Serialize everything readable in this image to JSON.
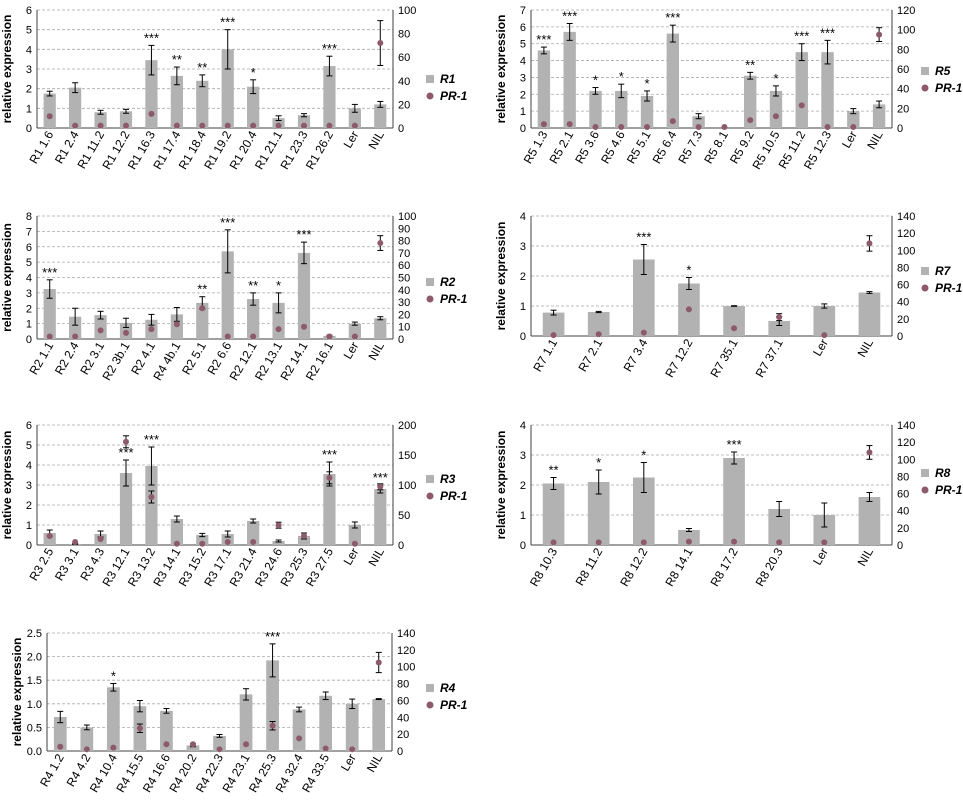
{
  "figure": {
    "colors": {
      "bar": "#b2b2b2",
      "point": "#8c5a6a",
      "grid": "#a9a9a9",
      "axis": "#404040",
      "error": "#000000"
    },
    "y_left_label": "relative expression",
    "legend_bar_symbol": "square",
    "legend_point_symbol": "circle"
  },
  "chart_data": [
    {
      "panel": "R1",
      "type": "bar",
      "categories": [
        "R1 1.6",
        "R1 2.4",
        "R1 11.2",
        "R1 12.2",
        "R1 16.3",
        "R1 17.4",
        "R1 18.4",
        "R1 19.2",
        "R1 20.4",
        "R1 21.1",
        "R1 23.3",
        "R1 26.2",
        "Ler",
        "NIL"
      ],
      "series": [
        {
          "name": "R1",
          "kind": "bar",
          "axis": "left",
          "values": [
            1.75,
            2.05,
            0.8,
            0.85,
            3.45,
            2.65,
            2.4,
            4.0,
            2.1,
            0.5,
            0.65,
            3.15,
            1.0,
            1.2
          ],
          "error": [
            0.12,
            0.25,
            0.1,
            0.1,
            0.75,
            0.45,
            0.3,
            1.0,
            0.35,
            0.12,
            0.08,
            0.5,
            0.2,
            0.15
          ]
        },
        {
          "name": "PR-1",
          "kind": "point",
          "axis": "right",
          "values": [
            10,
            2,
            2,
            2,
            12,
            2,
            2,
            2,
            2,
            2,
            2,
            2,
            2,
            72
          ],
          "error": [
            0,
            0,
            0,
            0,
            0,
            0,
            0,
            0,
            0,
            0,
            0,
            0,
            0,
            19
          ]
        }
      ],
      "significance": [
        "",
        "",
        "",
        "",
        "***",
        "**",
        "**",
        "***",
        "*",
        "",
        "",
        "***",
        "",
        ""
      ],
      "ylabel": "relative expression",
      "ylim": [
        0,
        6
      ],
      "yticks": [
        0,
        1,
        2,
        3,
        4,
        5,
        6
      ],
      "y2lim": [
        0,
        100
      ],
      "y2ticks": [
        0,
        20,
        40,
        60,
        80,
        100
      ],
      "legend": [
        "R1",
        "PR-1"
      ],
      "legend_position": "right",
      "grid": true
    },
    {
      "panel": "R5",
      "type": "bar",
      "categories": [
        "R5 1.3",
        "R5 2.1",
        "R5 3.6",
        "R5 4.6",
        "R5 5.1",
        "R5 6.4",
        "R5 7.3",
        "R5 8.1",
        "R5 9.2",
        "R5 10.5",
        "R5 11.2",
        "R5 12.3",
        "Ler",
        "NIL"
      ],
      "series": [
        {
          "name": "R5",
          "kind": "bar",
          "axis": "left",
          "values": [
            4.6,
            5.7,
            2.2,
            2.2,
            1.9,
            5.6,
            0.7,
            0,
            3.1,
            2.2,
            4.5,
            4.5,
            1.0,
            1.4
          ],
          "error": [
            0.2,
            0.5,
            0.2,
            0.4,
            0.3,
            0.5,
            0.15,
            0,
            0.2,
            0.3,
            0.5,
            0.7,
            0.15,
            0.2
          ]
        },
        {
          "name": "PR-1",
          "kind": "point",
          "axis": "right",
          "values": [
            4,
            4,
            1,
            1,
            1,
            7,
            1,
            1,
            8,
            12,
            23,
            1,
            1,
            95
          ],
          "error": [
            0,
            0,
            0,
            0,
            0,
            0,
            0,
            0,
            0,
            0,
            0,
            0,
            0,
            7
          ]
        }
      ],
      "significance": [
        "***",
        "***",
        "*",
        "*",
        "*",
        "***",
        "",
        "",
        "**",
        "*",
        "***",
        "***",
        "",
        ""
      ],
      "ylabel": "relative expression",
      "ylim": [
        0,
        7
      ],
      "yticks": [
        0,
        1,
        2,
        3,
        4,
        5,
        6,
        7
      ],
      "y2lim": [
        0,
        120
      ],
      "y2ticks": [
        0,
        20,
        40,
        60,
        80,
        100,
        120
      ],
      "legend": [
        "R5",
        "PR-1"
      ],
      "legend_position": "right",
      "grid": true
    },
    {
      "panel": "R2",
      "type": "bar",
      "categories": [
        "R2 1.1",
        "R2 2.4",
        "R2 3.1",
        "R2 3b.1",
        "R2 4.1",
        "R4 4b.1",
        "R2 5.1",
        "R2 6.6",
        "R2 12.1",
        "R2 13.1",
        "R2 14.1",
        "R2 16.1",
        "Ler",
        "NIL"
      ],
      "series": [
        {
          "name": "R2",
          "kind": "bar",
          "axis": "left",
          "values": [
            3.25,
            1.45,
            1.55,
            1.05,
            1.25,
            1.6,
            2.35,
            5.7,
            2.6,
            2.35,
            5.6,
            0.2,
            1.0,
            1.35
          ],
          "error": [
            0.6,
            0.55,
            0.25,
            0.3,
            0.35,
            0.45,
            0.4,
            1.4,
            0.4,
            0.65,
            0.7,
            0.05,
            0.1,
            0.1
          ]
        },
        {
          "name": "PR-1",
          "kind": "point",
          "axis": "right",
          "values": [
            2,
            2,
            7,
            5,
            8,
            12,
            25,
            2,
            2,
            8,
            10,
            2,
            2,
            78
          ],
          "error": [
            0,
            0,
            0,
            0,
            0,
            0,
            0,
            0,
            0,
            0,
            0,
            0,
            0,
            6
          ]
        }
      ],
      "significance": [
        "***",
        "",
        "",
        "",
        "",
        "",
        "**",
        "***",
        "**",
        "*",
        "***",
        "",
        "",
        ""
      ],
      "ylabel": "relative expression",
      "ylim": [
        0,
        8
      ],
      "yticks": [
        0,
        1,
        2,
        3,
        4,
        5,
        6,
        7,
        8
      ],
      "y2lim": [
        0,
        100
      ],
      "y2ticks": [
        0,
        10,
        20,
        30,
        40,
        50,
        60,
        70,
        80,
        90,
        100
      ],
      "legend": [
        "R2",
        "PR-1"
      ],
      "legend_position": "right",
      "grid": true
    },
    {
      "panel": "R7",
      "type": "bar",
      "categories": [
        "R7 1.1",
        "R7 2.1",
        "R7 3.4",
        "R7 12.2",
        "R7 35.1",
        "R7 37.1",
        "Ler",
        "NIL"
      ],
      "series": [
        {
          "name": "R7",
          "kind": "bar",
          "axis": "left",
          "values": [
            0.78,
            0.8,
            2.55,
            1.75,
            1.0,
            0.5,
            1.0,
            1.45
          ],
          "error": [
            0.08,
            0.02,
            0.5,
            0.2,
            0.01,
            0.15,
            0.07,
            0.03
          ]
        },
        {
          "name": "PR-1",
          "kind": "point",
          "axis": "right",
          "values": [
            1,
            2,
            4,
            31,
            9,
            22,
            1,
            108
          ],
          "error": [
            0,
            0,
            0,
            0,
            0,
            4,
            0,
            9
          ]
        }
      ],
      "significance": [
        "",
        "",
        "***",
        "*",
        "",
        "",
        "",
        ""
      ],
      "ylabel": "relative expression",
      "ylim": [
        0,
        4
      ],
      "yticks": [
        0,
        1,
        2,
        3,
        4
      ],
      "y2lim": [
        0,
        140
      ],
      "y2ticks": [
        0,
        20,
        40,
        60,
        80,
        100,
        120,
        140
      ],
      "legend": [
        "R7",
        "PR-1"
      ],
      "legend_position": "right",
      "grid": true
    },
    {
      "panel": "R3",
      "type": "bar",
      "categories": [
        "R3 2.5",
        "R3 3.1",
        "R3 4.3",
        "R3 12.1",
        "R3 13.2",
        "R3 14.1",
        "R3 15.2",
        "R3 17.1",
        "R3 21.4",
        "R3 24.6",
        "R3 25.3",
        "R3 27.5",
        "Ler",
        "NIL"
      ],
      "series": [
        {
          "name": "R3",
          "kind": "bar",
          "axis": "left",
          "values": [
            0.6,
            0.05,
            0.55,
            3.6,
            3.95,
            1.3,
            0.5,
            0.55,
            1.2,
            0.2,
            0.45,
            3.55,
            1.0,
            2.8
          ],
          "error": [
            0.15,
            0.02,
            0.15,
            0.65,
            0.95,
            0.15,
            0.08,
            0.15,
            0.1,
            0.05,
            0.15,
            0.6,
            0.15,
            0.2
          ]
        },
        {
          "name": "PR-1",
          "kind": "point",
          "axis": "right",
          "values": [
            15,
            5,
            10,
            172,
            80,
            2,
            2,
            5,
            5,
            33,
            15,
            112,
            2,
            97
          ],
          "error": [
            0,
            0,
            0,
            10,
            10,
            0,
            0,
            0,
            0,
            5,
            0,
            10,
            0,
            5
          ]
        }
      ],
      "significance": [
        "",
        "",
        "",
        "***",
        "***",
        "",
        "",
        "",
        "",
        "",
        "",
        "***",
        "",
        "***"
      ],
      "ylabel": "relative expression",
      "ylim": [
        0,
        6
      ],
      "yticks": [
        0,
        1,
        2,
        3,
        4,
        5,
        6
      ],
      "y2lim": [
        0,
        200
      ],
      "y2ticks": [
        0,
        50,
        100,
        150,
        200
      ],
      "legend": [
        "R3",
        "PR-1"
      ],
      "legend_position": "right",
      "grid": true
    },
    {
      "panel": "R8",
      "type": "bar",
      "categories": [
        "R8 10.3",
        "R8 11.2",
        "R8 12.2",
        "R8 14.1",
        "R8 17.2",
        "R8 20.3",
        "Ler",
        "NIL"
      ],
      "series": [
        {
          "name": "R8",
          "kind": "bar",
          "axis": "left",
          "values": [
            2.05,
            2.1,
            2.25,
            0.5,
            2.9,
            1.2,
            1.0,
            1.6
          ],
          "error": [
            0.2,
            0.4,
            0.5,
            0.05,
            0.2,
            0.25,
            0.4,
            0.15
          ]
        },
        {
          "name": "PR-1",
          "kind": "point",
          "axis": "right",
          "values": [
            3,
            3,
            3,
            4,
            4,
            3,
            3,
            108
          ],
          "error": [
            0,
            0,
            0,
            0,
            0,
            0,
            0,
            8
          ]
        }
      ],
      "significance": [
        "**",
        "*",
        "*",
        "",
        "***",
        "",
        "",
        ""
      ],
      "ylabel": "relative expression",
      "ylim": [
        0,
        4
      ],
      "yticks": [
        0,
        1,
        2,
        3,
        4
      ],
      "y2lim": [
        0,
        140
      ],
      "y2ticks": [
        0,
        20,
        40,
        60,
        80,
        100,
        120,
        140
      ],
      "legend": [
        "R8",
        "PR-1"
      ],
      "legend_position": "right",
      "grid": true
    },
    {
      "panel": "R4",
      "type": "bar",
      "categories": [
        "R4 1.2",
        "R4 4.2",
        "R4 10.4",
        "R4 15.5",
        "R4 16.6",
        "R4 20.2",
        "R4 22.3",
        "R4 23.1",
        "R4 25.3",
        "R4 32.4",
        "R4 33.5",
        "Ler",
        "NIL"
      ],
      "series": [
        {
          "name": "R4",
          "kind": "bar",
          "axis": "left",
          "values": [
            0.72,
            0.5,
            1.35,
            0.95,
            0.85,
            0.12,
            0.32,
            1.2,
            1.92,
            0.88,
            1.17,
            1.0,
            1.1
          ],
          "error": [
            0.12,
            0.05,
            0.08,
            0.12,
            0.05,
            0.03,
            0.03,
            0.12,
            0.35,
            0.05,
            0.08,
            0.1,
            0.01
          ]
        },
        {
          "name": "PR-1",
          "kind": "point",
          "axis": "right",
          "values": [
            5,
            2,
            4,
            27,
            8,
            8,
            2,
            8,
            30,
            15,
            3,
            2,
            105
          ],
          "error": [
            0,
            0,
            0,
            5,
            0,
            0,
            0,
            0,
            5,
            0,
            0,
            0,
            12
          ]
        }
      ],
      "significance": [
        "",
        "",
        "*",
        "",
        "",
        "",
        "",
        "",
        "***",
        "",
        "",
        "",
        ""
      ],
      "ylabel": "relative expression",
      "ylim": [
        0,
        2.5
      ],
      "yticks": [
        "0.0",
        "0.5",
        "1.0",
        "1.5",
        "2.0",
        "2.5"
      ],
      "y2lim": [
        0,
        140
      ],
      "y2ticks": [
        0,
        20,
        40,
        60,
        80,
        100,
        120,
        140
      ],
      "legend": [
        "R4",
        "PR-1"
      ],
      "legend_position": "right",
      "grid": true
    }
  ]
}
